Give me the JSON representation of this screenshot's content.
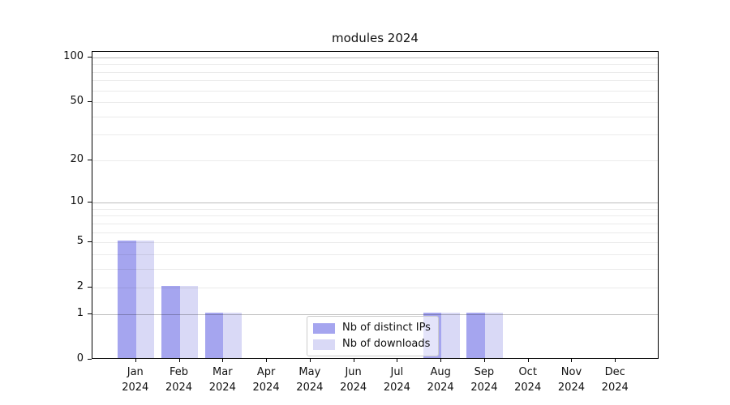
{
  "chart_data": {
    "type": "bar",
    "title": "modules 2024",
    "categories": [
      "Jan",
      "Feb",
      "Mar",
      "Apr",
      "May",
      "Jun",
      "Jul",
      "Aug",
      "Sep",
      "Oct",
      "Nov",
      "Dec"
    ],
    "x_second_line": "2024",
    "series": [
      {
        "name": "Nb of distinct IPs",
        "color": "#a5a5ef",
        "values": [
          5,
          2,
          1,
          0,
          0,
          0,
          0,
          1,
          1,
          0,
          0,
          0
        ]
      },
      {
        "name": "Nb of downloads",
        "color": "#d9d9f6",
        "values": [
          5,
          2,
          1,
          0,
          0,
          0,
          0,
          1,
          1,
          0,
          0,
          0
        ]
      }
    ],
    "y_scale": "log10(1+v)",
    "y_ticks": [
      0,
      1,
      2,
      5,
      10,
      20,
      50,
      100
    ],
    "y_major_gridlines": [
      1,
      10,
      100
    ],
    "y_minor_gridlines": [
      2,
      3,
      4,
      5,
      6,
      7,
      8,
      9,
      20,
      30,
      40,
      50,
      60,
      70,
      80,
      90
    ],
    "ylim": [
      0,
      109
    ],
    "grid": "on",
    "legend_position": "lower center",
    "xlabel": "",
    "ylabel": ""
  },
  "colors": {
    "background": "#ffffff",
    "axis_frame": "#000000",
    "text": "#111111",
    "major_gridline": "rgba(0,0,0,0.26)",
    "minor_gridline": "rgba(0,0,0,0.08)",
    "legend_border": "#cccccc",
    "legend_bg": "rgba(255,255,255,0.7)"
  }
}
